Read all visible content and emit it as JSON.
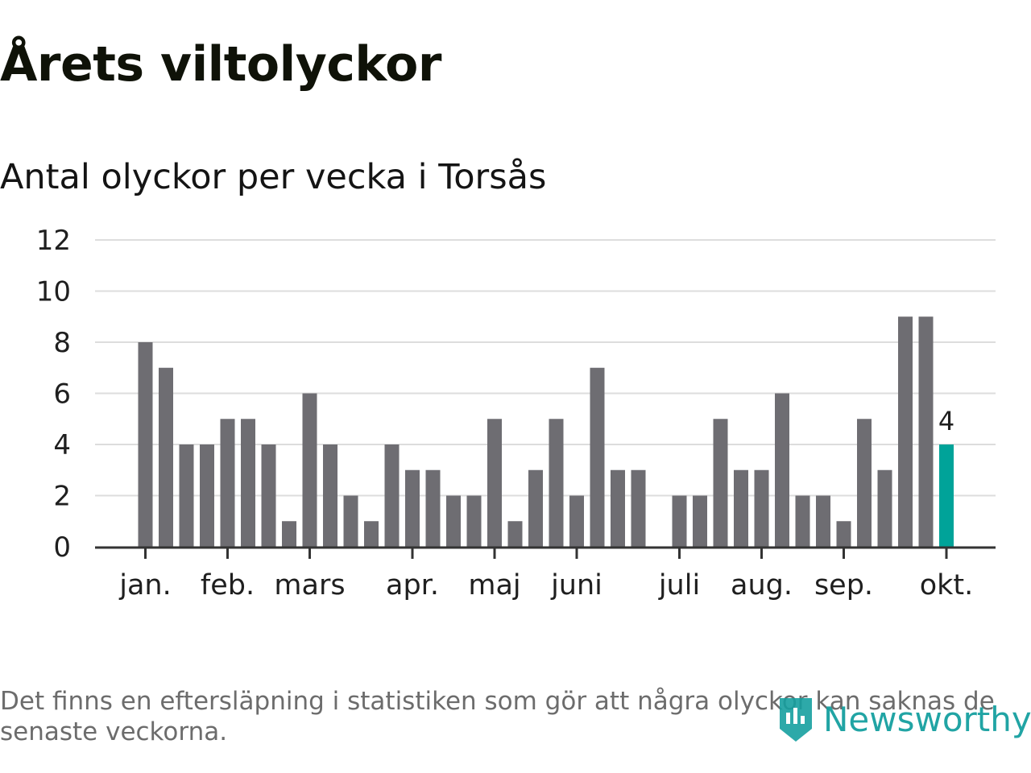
{
  "title": "Årets viltolyckor",
  "subtitle": "Antal olyckor per vecka i Torsås",
  "footnote": "Det finns en eftersläpning i statistiken som gör att några olyckor kan saknas de senaste veckorna.",
  "logo": {
    "text": "Newsworthy",
    "icon": "bar-chart-badge-icon"
  },
  "colors": {
    "bar": "#6e6d72",
    "highlight": "#00a399",
    "grid": "#dddddd",
    "axis": "#333333",
    "logo": "#16a0a0"
  },
  "chart_data": {
    "type": "bar",
    "title": "Antal olyckor per vecka i Torsås",
    "xlabel": "",
    "ylabel": "",
    "ylim": [
      0,
      12
    ],
    "yticks": [
      "0",
      "2",
      "4",
      "6",
      "8",
      "10",
      "12"
    ],
    "grid": true,
    "weeks": [
      1,
      2,
      3,
      4,
      5,
      6,
      7,
      8,
      9,
      10,
      11,
      12,
      13,
      14,
      15,
      16,
      17,
      18,
      19,
      20,
      21,
      22,
      23,
      24,
      25,
      26,
      27,
      28,
      29,
      30,
      31,
      32,
      33,
      34,
      35,
      36,
      37,
      38,
      39,
      40
    ],
    "values": [
      8,
      7,
      4,
      4,
      5,
      5,
      4,
      1,
      6,
      4,
      2,
      1,
      4,
      3,
      3,
      2,
      2,
      5,
      1,
      3,
      5,
      2,
      7,
      3,
      3,
      0,
      2,
      2,
      5,
      3,
      3,
      6,
      2,
      2,
      1,
      5,
      3,
      9,
      9,
      4
    ],
    "highlight_index": 39,
    "highlight_label": "4",
    "month_labels": [
      {
        "label": "jan.",
        "week": 1
      },
      {
        "label": "feb.",
        "week": 5
      },
      {
        "label": "mars",
        "week": 9
      },
      {
        "label": "apr.",
        "week": 14
      },
      {
        "label": "maj",
        "week": 18
      },
      {
        "label": "juni",
        "week": 22
      },
      {
        "label": "juli",
        "week": 27
      },
      {
        "label": "aug.",
        "week": 31
      },
      {
        "label": "sep.",
        "week": 35
      },
      {
        "label": "okt.",
        "week": 40
      }
    ]
  }
}
